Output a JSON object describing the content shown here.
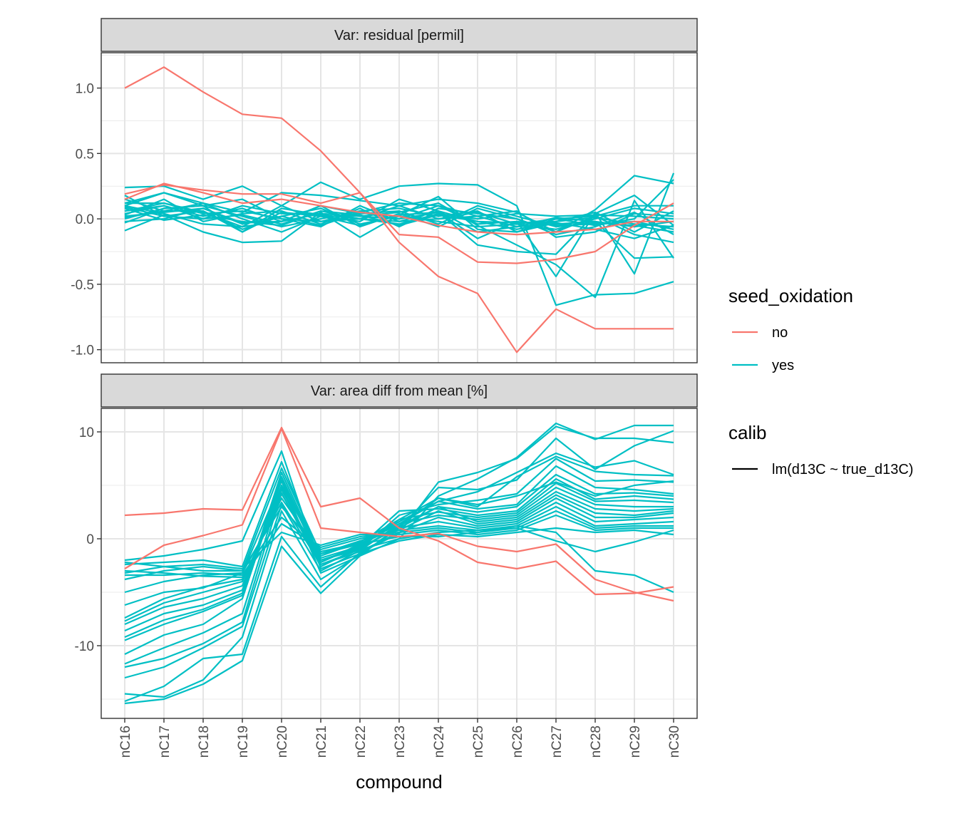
{
  "chart_data": {
    "type": "line",
    "xlabel": "compound",
    "categories": [
      "nC16",
      "nC17",
      "nC18",
      "nC19",
      "nC20",
      "nC21",
      "nC22",
      "nC23",
      "nC24",
      "nC25",
      "nC26",
      "nC27",
      "nC28",
      "nC29",
      "nC30"
    ],
    "colors": {
      "no": "#F8766D",
      "yes": "#00BFC4"
    },
    "grid": true,
    "legend_placement": "right",
    "legends": [
      {
        "title": "seed_oxidation",
        "entries": [
          {
            "label": "no",
            "color": "#F8766D"
          },
          {
            "label": "yes",
            "color": "#00BFC4"
          }
        ]
      },
      {
        "title": "calib",
        "entries": [
          {
            "label": "lm(d13C ~ true_d13C)",
            "color": "#000000"
          }
        ]
      }
    ],
    "panels": [
      {
        "strip": "Var: residual [permil]",
        "ylim": [
          -1.1,
          1.27
        ],
        "yticks": [
          1.0,
          0.5,
          0.0,
          -0.5,
          -1.0
        ],
        "ytick_labels": [
          "1.0",
          "0.5",
          "0.0",
          "-0.5",
          "-1.0"
        ],
        "series": [
          {
            "group": "no",
            "values": [
              1.0,
              1.16,
              0.97,
              0.8,
              0.77,
              0.52,
              0.2,
              -0.12,
              -0.14,
              -0.33,
              -0.34,
              -0.31,
              -0.25,
              -0.05,
              0.12
            ]
          },
          {
            "group": "no",
            "values": [
              0.19,
              0.26,
              0.22,
              0.19,
              0.19,
              0.12,
              0.2,
              -0.18,
              -0.44,
              -0.57,
              -1.02,
              -0.69,
              -0.84,
              -0.84,
              -0.84
            ]
          },
          {
            "group": "no",
            "values": [
              0.15,
              0.27,
              0.2,
              0.12,
              0.15,
              0.1,
              0.05,
              0.02,
              -0.05,
              -0.1,
              -0.12,
              -0.1,
              -0.08,
              -0.02,
              -0.02
            ]
          },
          {
            "group": "yes",
            "values": [
              0.24,
              0.25,
              0.15,
              0.25,
              0.1,
              0.28,
              0.15,
              0.25,
              0.27,
              0.26,
              0.1,
              -0.66,
              -0.58,
              -0.57,
              -0.48
            ]
          },
          {
            "group": "yes",
            "values": [
              0.1,
              0.2,
              0.12,
              0.05,
              0.2,
              0.18,
              0.14,
              0.1,
              0.15,
              0.12,
              0.05,
              -0.1,
              0.07,
              0.33,
              0.27
            ]
          },
          {
            "group": "yes",
            "values": [
              -0.09,
              0.03,
              -0.1,
              -0.18,
              -0.17,
              0.05,
              -0.14,
              0.03,
              0.05,
              -0.2,
              -0.25,
              -0.27,
              0.04,
              0.18,
              -0.05
            ]
          },
          {
            "group": "yes",
            "values": [
              0.02,
              0.05,
              0.08,
              -0.04,
              0.02,
              -0.05,
              0.05,
              0.0,
              0.05,
              -0.15,
              -0.02,
              -0.44,
              0.05,
              -0.42,
              0.35
            ]
          },
          {
            "group": "yes",
            "values": [
              0.06,
              0.12,
              0.05,
              -0.06,
              -0.02,
              0.04,
              0.02,
              0.05,
              0.12,
              -0.05,
              -0.2,
              -0.35,
              -0.6,
              0.14,
              -0.3
            ]
          },
          {
            "group": "yes",
            "values": [
              0.12,
              0.2,
              0.1,
              0.15,
              0.0,
              -0.02,
              0.05,
              0.12,
              0.1,
              0.02,
              -0.06,
              -0.04,
              -0.02,
              -0.3,
              -0.29
            ]
          },
          {
            "group": "yes",
            "values": [
              0.0,
              0.08,
              0.1,
              -0.1,
              0.05,
              0.02,
              -0.05,
              0.03,
              0.17,
              -0.08,
              -0.1,
              0.0,
              -0.05,
              0.0,
              0.3
            ]
          },
          {
            "group": "yes",
            "values": [
              0.08,
              -0.01,
              0.03,
              -0.02,
              -0.05,
              0.06,
              0.0,
              -0.02,
              0.0,
              0.05,
              -0.04,
              0.0,
              0.02,
              -0.12,
              -0.18
            ]
          },
          {
            "group": "yes",
            "values": [
              0.04,
              0.1,
              0.02,
              0.08,
              -0.02,
              0.1,
              0.04,
              0.06,
              -0.04,
              0.1,
              0.02,
              -0.06,
              -0.03,
              -0.05,
              -0.1
            ]
          },
          {
            "group": "yes",
            "values": [
              0.15,
              0.06,
              0.12,
              0.0,
              -0.1,
              0.02,
              -0.02,
              0.15,
              0.06,
              -0.02,
              -0.08,
              -0.02,
              0.05,
              -0.1,
              0.06
            ]
          },
          {
            "group": "yes",
            "values": [
              0.03,
              0.15,
              -0.02,
              0.04,
              0.06,
              -0.04,
              0.08,
              -0.06,
              0.08,
              0.04,
              0.0,
              -0.12,
              -0.06,
              0.05,
              -0.12
            ]
          },
          {
            "group": "yes",
            "values": [
              0.18,
              0.02,
              0.06,
              -0.08,
              0.02,
              0.08,
              -0.04,
              0.02,
              -0.02,
              -0.06,
              -0.04,
              -0.08,
              0.0,
              0.08,
              0.04
            ]
          },
          {
            "group": "yes",
            "values": [
              -0.03,
              0.08,
              0.1,
              0.02,
              -0.06,
              0.0,
              0.06,
              0.08,
              0.02,
              0.06,
              -0.1,
              -0.03,
              -0.08,
              -0.15,
              -0.05
            ]
          },
          {
            "group": "yes",
            "values": [
              0.1,
              0.04,
              -0.04,
              -0.06,
              0.1,
              -0.02,
              0.0,
              -0.04,
              0.04,
              0.0,
              0.04,
              0.02,
              0.03,
              0.02,
              0.0
            ]
          },
          {
            "group": "yes",
            "values": [
              0.06,
              0.1,
              0.0,
              0.1,
              0.04,
              0.04,
              0.02,
              0.0,
              0.1,
              -0.04,
              -0.02,
              -0.05,
              -0.04,
              -0.02,
              -0.08
            ]
          },
          {
            "group": "yes",
            "values": [
              -0.02,
              0.0,
              0.08,
              -0.03,
              -0.02,
              0.1,
              -0.06,
              0.04,
              -0.06,
              0.08,
              0.0,
              -0.1,
              0.02,
              0.1,
              0.1
            ]
          },
          {
            "group": "yes",
            "values": [
              0.12,
              0.12,
              0.04,
              0.06,
              0.0,
              -0.06,
              0.1,
              -0.02,
              0.06,
              -0.1,
              -0.06,
              0.01,
              -0.02,
              -0.06,
              -0.02
            ]
          },
          {
            "group": "yes",
            "values": [
              0.01,
              0.06,
              0.06,
              -0.1,
              0.08,
              0.03,
              0.0,
              0.1,
              0.0,
              0.02,
              0.06,
              -0.14,
              -0.1,
              0.04,
              0.02
            ]
          },
          {
            "group": "yes",
            "values": [
              0.09,
              0.02,
              0.0,
              0.03,
              -0.04,
              0.06,
              0.03,
              -0.05,
              0.03,
              -0.02,
              -0.03,
              -0.02,
              0.01,
              -0.04,
              -0.06
            ]
          }
        ]
      },
      {
        "strip": "Var: area diff from mean [%]",
        "ylim": [
          -16.8,
          12.2
        ],
        "yticks": [
          10,
          0,
          -10
        ],
        "ytick_labels": [
          "10",
          "0",
          "-10"
        ],
        "series": [
          {
            "group": "no",
            "values": [
              2.2,
              2.4,
              2.8,
              2.7,
              10.4,
              3.0,
              3.8,
              1.0,
              -0.2,
              -2.2,
              -2.8,
              -2.1,
              -5.2,
              -5.1,
              -4.5
            ]
          },
          {
            "group": "no",
            "values": [
              -2.8,
              -0.6,
              0.3,
              1.3,
              10.3,
              1.0,
              0.6,
              0.2,
              0.5,
              -0.7,
              -1.2,
              -0.5,
              -3.8,
              -5.0,
              -5.8
            ]
          },
          {
            "group": "yes",
            "values": [
              -15.4,
              -15.0,
              -13.6,
              -11.4,
              -0.7,
              -5.1,
              -1.6,
              0.0,
              4.0,
              5.6,
              7.6,
              10.8,
              9.3,
              10.6,
              10.6
            ]
          },
          {
            "group": "yes",
            "values": [
              -15.2,
              -13.8,
              -11.2,
              -10.8,
              0.2,
              -4.5,
              -1.3,
              0.5,
              5.3,
              6.2,
              7.5,
              10.5,
              9.4,
              9.4,
              9.0
            ]
          },
          {
            "group": "yes",
            "values": [
              -14.5,
              -14.8,
              -13.2,
              -9.2,
              2.6,
              -3.8,
              -1.5,
              1.0,
              4.8,
              4.6,
              5.5,
              9.4,
              6.5,
              8.7,
              10.1
            ]
          },
          {
            "group": "yes",
            "values": [
              -13.0,
              -12.0,
              -10.2,
              -8.2,
              3.2,
              -3.0,
              -1.1,
              1.4,
              3.5,
              4.4,
              6.2,
              8.0,
              6.7,
              7.3,
              6.0
            ]
          },
          {
            "group": "yes",
            "values": [
              -12.0,
              -11.2,
              -9.8,
              -7.8,
              4.3,
              -2.6,
              -0.8,
              1.8,
              3.8,
              3.0,
              5.8,
              7.7,
              6.3,
              6.0,
              5.9
            ]
          },
          {
            "group": "yes",
            "values": [
              -11.7,
              -10.2,
              -8.8,
              -7.0,
              4.8,
              -2.4,
              -1.0,
              2.2,
              3.2,
              3.6,
              4.2,
              7.5,
              5.4,
              5.5,
              5.3
            ]
          },
          {
            "group": "yes",
            "values": [
              -10.8,
              -9.0,
              -8.0,
              -5.6,
              5.5,
              -2.2,
              -0.6,
              1.6,
              3.5,
              2.8,
              3.2,
              6.8,
              4.8,
              4.6,
              4.2
            ]
          },
          {
            "group": "yes",
            "values": [
              -9.5,
              -8.0,
              -6.8,
              -5.3,
              5.8,
              -2.0,
              -0.9,
              1.2,
              3.0,
              2.5,
              3.0,
              6.0,
              4.2,
              4.3,
              4.0
            ]
          },
          {
            "group": "yes",
            "values": [
              -9.2,
              -7.6,
              -6.6,
              -5.1,
              6.2,
              -1.8,
              -0.7,
              2.6,
              2.8,
              2.2,
              2.6,
              5.6,
              3.7,
              4.0,
              3.7
            ]
          },
          {
            "group": "yes",
            "values": [
              -8.6,
              -7.0,
              -6.2,
              -4.8,
              5.0,
              -1.6,
              -0.3,
              1.8,
              2.5,
              2.0,
              2.4,
              5.2,
              3.5,
              3.6,
              3.4
            ]
          },
          {
            "group": "yes",
            "values": [
              -8.0,
              -6.4,
              -5.6,
              -4.4,
              4.6,
              -2.2,
              -0.5,
              1.4,
              2.2,
              1.8,
              2.2,
              4.8,
              3.2,
              3.0,
              3.0
            ]
          },
          {
            "group": "yes",
            "values": [
              -7.7,
              -6.0,
              -5.0,
              -4.0,
              4.2,
              -2.0,
              -0.8,
              1.0,
              3.0,
              1.6,
              2.0,
              4.4,
              2.8,
              2.6,
              2.8
            ]
          },
          {
            "group": "yes",
            "values": [
              -7.4,
              -5.6,
              -4.5,
              -3.8,
              3.8,
              -1.4,
              -0.2,
              0.8,
              2.6,
              1.4,
              1.8,
              4.1,
              2.4,
              2.2,
              2.6
            ]
          },
          {
            "group": "yes",
            "values": [
              -5.0,
              -4.0,
              -3.4,
              -3.2,
              3.4,
              -2.4,
              -1.2,
              0.6,
              2.0,
              1.2,
              1.6,
              3.8,
              2.0,
              2.0,
              2.4
            ]
          },
          {
            "group": "yes",
            "values": [
              -3.8,
              -3.0,
              -2.6,
              -3.0,
              3.0,
              -1.2,
              -0.4,
              1.0,
              1.6,
              1.0,
              1.4,
              3.4,
              1.6,
              1.8,
              2.0
            ]
          },
          {
            "group": "yes",
            "values": [
              -3.4,
              -3.4,
              -3.2,
              -3.4,
              2.0,
              -1.0,
              0.0,
              0.8,
              1.2,
              0.8,
              1.2,
              3.0,
              1.2,
              1.4,
              1.6
            ]
          },
          {
            "group": "yes",
            "values": [
              -3.0,
              -3.2,
              -3.5,
              -3.6,
              1.4,
              -0.8,
              0.2,
              0.6,
              1.0,
              0.6,
              1.0,
              2.6,
              1.0,
              1.2,
              1.2
            ]
          },
          {
            "group": "yes",
            "values": [
              -2.2,
              -2.6,
              -2.4,
              -2.8,
              0.6,
              -0.6,
              0.4,
              0.4,
              0.8,
              0.4,
              0.8,
              2.2,
              0.8,
              1.0,
              1.0
            ]
          },
          {
            "group": "yes",
            "values": [
              -2.0,
              -1.6,
              -1.0,
              -0.2,
              8.2,
              -2.8,
              -1.4,
              -0.2,
              0.4,
              0.2,
              0.6,
              1.0,
              0.6,
              0.8,
              0.4
            ]
          },
          {
            "group": "yes",
            "values": [
              -2.4,
              -2.2,
              -2.0,
              -2.6,
              7.2,
              -2.0,
              -1.0,
              0.0,
              0.6,
              0.8,
              1.0,
              -0.2,
              -1.2,
              -0.3,
              0.8
            ]
          },
          {
            "group": "yes",
            "values": [
              -3.2,
              -2.6,
              -3.0,
              -3.0,
              6.6,
              -1.4,
              -0.5,
              0.2,
              0.2,
              0.6,
              1.2,
              0.6,
              -3.0,
              -3.4,
              -5.0
            ]
          },
          {
            "group": "yes",
            "values": [
              -6.2,
              -5.0,
              -4.6,
              -3.2,
              5.4,
              -3.2,
              -1.6,
              1.2,
              3.8,
              3.2,
              4.0,
              5.3,
              4.0,
              5.0,
              5.4
            ]
          }
        ]
      }
    ]
  }
}
